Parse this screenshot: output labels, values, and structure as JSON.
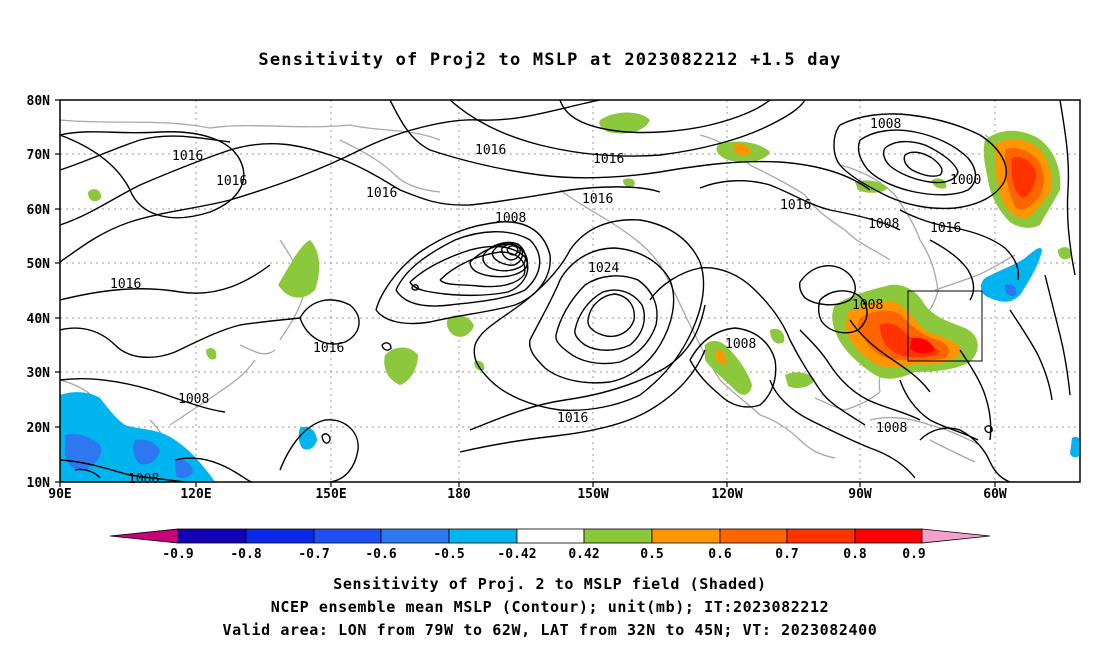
{
  "title": "Sensitivity of Proj2 to MSLP at 2023082212 +1.5 day",
  "lat_ticks": [
    "80N",
    "70N",
    "60N",
    "50N",
    "40N",
    "30N",
    "20N",
    "10N"
  ],
  "lon_ticks": [
    "90E",
    "120E",
    "150E",
    "180",
    "150W",
    "120W",
    "90W",
    "60W"
  ],
  "contour_labels": [
    "1016",
    "1016",
    "1016",
    "1016",
    "1016",
    "1016",
    "1016",
    "1016",
    "1016",
    "1016",
    "1008",
    "1008",
    "1008",
    "1008",
    "1008",
    "1008",
    "1008",
    "1008",
    "1024",
    "1000"
  ],
  "colorbar": {
    "labels": [
      "-0.9",
      "-0.8",
      "-0.7",
      "-0.6",
      "-0.5",
      "-0.42",
      "0.42",
      "0.5",
      "0.6",
      "0.7",
      "0.8",
      "0.9"
    ],
    "colors": [
      "#c8007a",
      "#1400b4",
      "#0a28e6",
      "#1e50f0",
      "#2d78f0",
      "#00b4f0",
      "#ffffff",
      "#8cc83c",
      "#ff9600",
      "#ff6400",
      "#ff3200",
      "#ff0000",
      "#f5a0c8"
    ]
  },
  "captions": {
    "line1": "Sensitivity of Proj. 2 to MSLP field (Shaded)",
    "line2": "NCEP ensemble mean MSLP (Contour); unit(mb); IT:2023082212",
    "line3": "Valid area: LON from 79W to 62W, LAT from 32N to 45N; VT: 2023082400"
  }
}
